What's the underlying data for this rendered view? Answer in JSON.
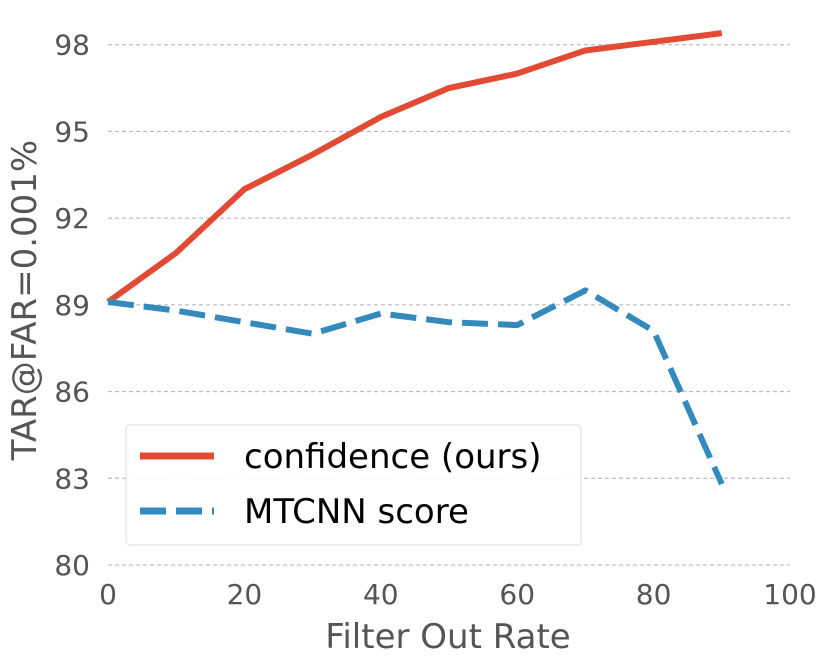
{
  "chart_data": {
    "type": "line",
    "title": "",
    "xlabel": "Filter Out Rate",
    "ylabel": "TAR@FAR=0.001%",
    "xlim": [
      0,
      100
    ],
    "ylim": [
      80,
      99.2
    ],
    "xticks": [
      0,
      20,
      40,
      60,
      80,
      100
    ],
    "yticks": [
      80,
      83,
      86,
      89,
      92,
      95,
      98
    ],
    "grid": "horizontal-dashed",
    "legend_position": "lower-left",
    "x": [
      0,
      10,
      20,
      30,
      40,
      50,
      60,
      70,
      80,
      90
    ],
    "series": [
      {
        "name": "confidence (ours)",
        "color": "#e24a33",
        "style": "solid",
        "values": [
          89.1,
          90.8,
          93.0,
          94.2,
          95.5,
          96.5,
          97.0,
          97.8,
          98.1,
          98.4
        ]
      },
      {
        "name": "MTCNN score",
        "color": "#348abd",
        "style": "dashed",
        "values": [
          89.1,
          88.8,
          88.4,
          88.0,
          88.7,
          88.4,
          88.3,
          89.5,
          88.1,
          82.8
        ]
      }
    ]
  }
}
